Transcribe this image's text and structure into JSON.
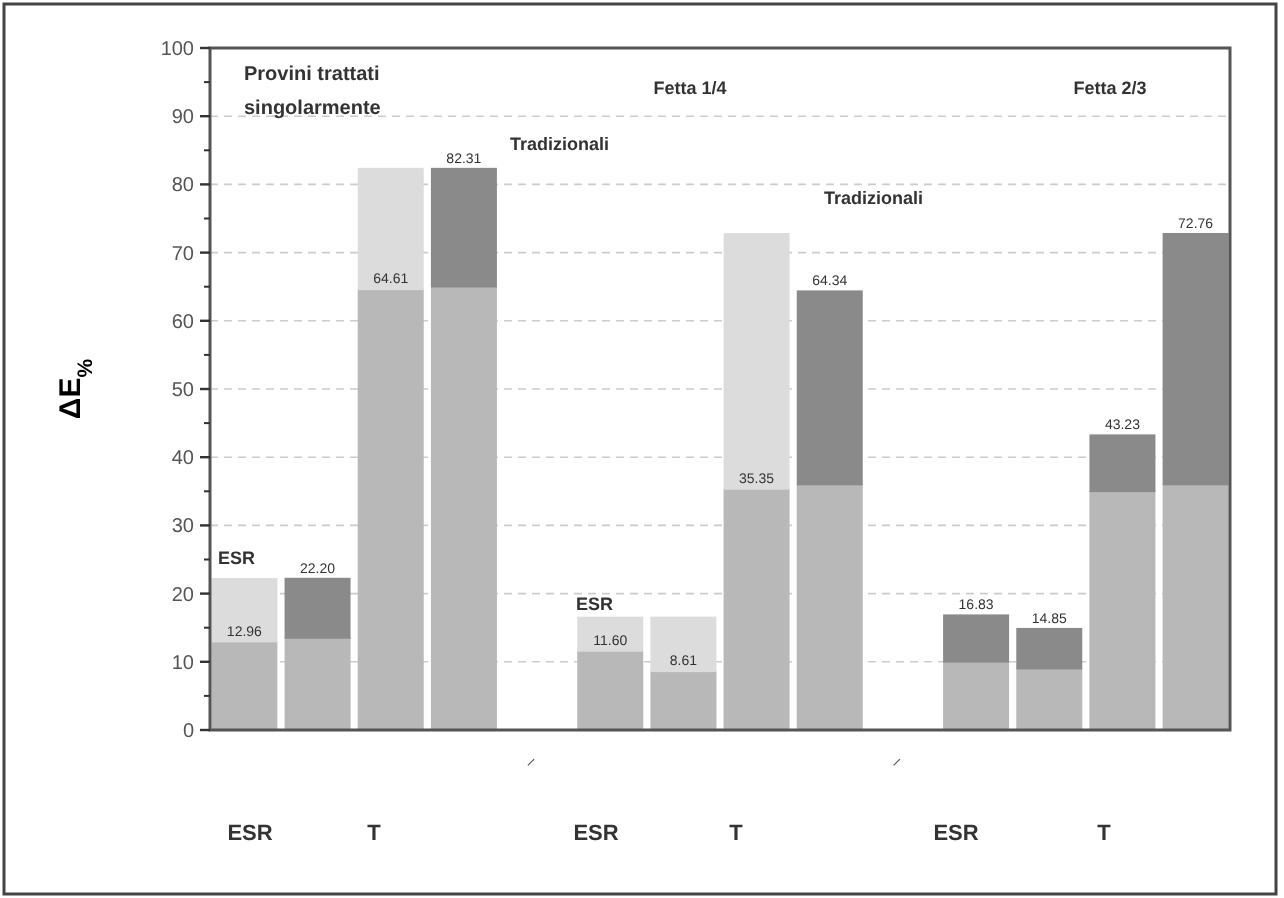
{
  "chart_data": {
    "type": "bar",
    "stacked": true,
    "ylabel": "ΔE$_{%}$",
    "totals": [
      null,
      "22.20",
      null,
      "82.31",
      null,
      null,
      null,
      null,
      "64.34",
      null,
      "16.83",
      "14.85",
      "43.23",
      "72.76"
    ],
    "categories": [
      null,
      null,
      null,
      null,
      "–",
      null,
      null,
      null,
      null,
      "–",
      null,
      null,
      null,
      null
    ],
    "series": [
      {
        "color": "#b8b8b8",
        "values": [
          12.96,
          13.5,
          64.61,
          65,
          null,
          11.6,
          8.61,
          35.35,
          36,
          null,
          10,
          9,
          35,
          36
        ],
        "value_labels": [
          "12.96",
          null,
          "64.61",
          null,
          null,
          "11.60",
          "8.61",
          "35.35",
          null,
          null,
          null,
          null,
          null,
          null
        ]
      },
      {
        "color": "#8a8a8a",
        "values": [
          null,
          8.7,
          null,
          17.31,
          null,
          null,
          null,
          null,
          28.34,
          null,
          6.83,
          5.85,
          8.23,
          36.76
        ]
      },
      {
        "color": "#dcdcdc",
        "values": [
          9.2,
          null,
          17.7,
          null,
          null,
          4.9,
          7.9,
          37.4,
          null,
          null,
          null,
          null,
          null,
          null
        ]
      }
    ],
    "ylim": [
      0,
      100
    ],
    "yticks": [
      0,
      10,
      20,
      30,
      40,
      50,
      60,
      70,
      80,
      90,
      100
    ],
    "grid": "y",
    "annotations": [
      "Provini trattati singolarmente",
      "Fetta 1/4",
      "Fetta 2/3",
      "Tradizionali",
      "Tradizionali",
      "ESR",
      "ESR",
      "ESR",
      "T",
      "ESR",
      "T",
      "ESR",
      "T"
    ]
  }
}
